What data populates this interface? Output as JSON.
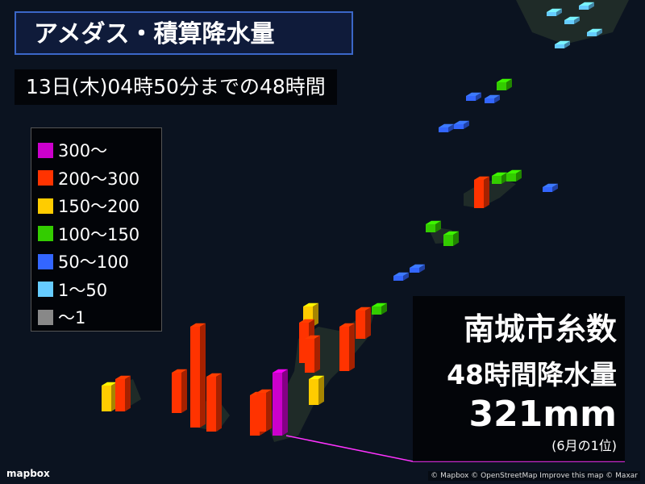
{
  "header": {
    "title": "アメダス・積算降水量",
    "subtitle": "13日(木)04時50分までの48時間"
  },
  "legend": {
    "items": [
      {
        "label": "300〜",
        "color": "#cc00cc"
      },
      {
        "label": "200〜300",
        "color": "#ff3300"
      },
      {
        "label": "150〜200",
        "color": "#ffcc00"
      },
      {
        "label": "100〜150",
        "color": "#33cc00"
      },
      {
        "label": "50〜100",
        "color": "#3366ff"
      },
      {
        "label": "1〜50",
        "color": "#66ccff"
      },
      {
        "label": "〜1",
        "color": "#888888"
      }
    ]
  },
  "callout": {
    "place": "南城市糸数",
    "label": "48時間降水量",
    "amount": "321mm",
    "rank": "(6月の1位)"
  },
  "attribution": {
    "logo": "mapbox",
    "credits": "© Mapbox © OpenStreetMap Improve this map © Maxar"
  }
}
